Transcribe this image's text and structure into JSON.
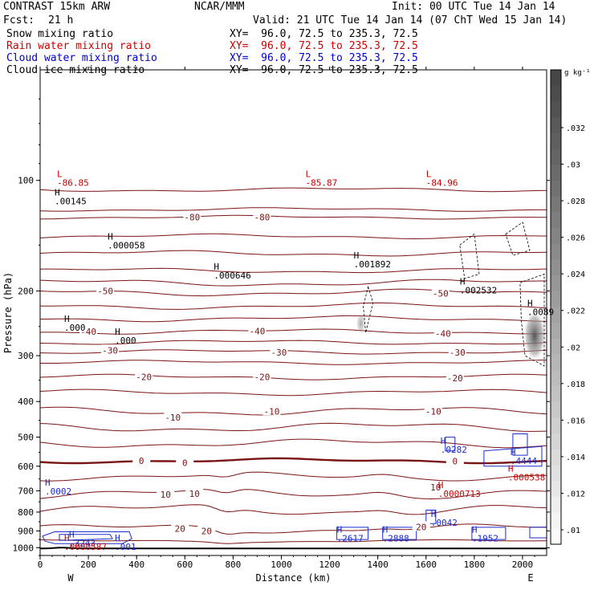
{
  "header": {
    "model": "CONTRAST 15km ARW",
    "org": "NCAR/MMM",
    "init": "Init: 00 UTC Tue 14 Jan 14",
    "fcst_label": "Fcst:",
    "fcst_value": "21 h",
    "valid": "Valid: 21 UTC Tue 14 Jan 14 (07 ChT Wed 15 Jan 14)",
    "rows": [
      {
        "field": "Snow mixing ratio",
        "xy": "XY=  96.0, 72.5 to 235.3, 72.5",
        "color": "#000000"
      },
      {
        "field": "Rain water mixing ratio",
        "xy": "XY=  96.0, 72.5 to 235.3, 72.5",
        "color": "#d00000"
      },
      {
        "field": "Cloud water mixing ratio",
        "xy": "XY=  96.0, 72.5 to 235.3, 72.5",
        "color": "#0000d0"
      },
      {
        "field": "Cloud ice mixing ratio",
        "xy": "XY=  96.0, 72.5 to 235.3, 72.5",
        "color": "#000000"
      }
    ]
  },
  "colors": {
    "temp_contour": "#7a1414",
    "surface": "#000000",
    "cloud_water": "#1a2bd0",
    "rain_water": "#cc0000",
    "label_black": "#000000"
  },
  "chart_data": {
    "type": "contour",
    "xlabel": "Distance (km)",
    "ylabel": "Pressure (hPa)",
    "xlim": [
      0,
      2100
    ],
    "ylim": [
      1050,
      50
    ],
    "y_scale": "log",
    "x_ticks": [
      0,
      200,
      400,
      600,
      800,
      1000,
      1200,
      1400,
      1600,
      1800,
      2000
    ],
    "y_ticks": [
      100,
      200,
      300,
      400,
      500,
      600,
      700,
      800,
      900,
      1000
    ],
    "direction_labels": {
      "left": "W",
      "right": "E"
    },
    "colorbar": {
      "unit": "g kg⁻¹",
      "ticks": [
        ".01",
        ".012",
        ".014",
        ".016",
        ".018",
        ".02",
        ".022",
        ".024",
        ".026",
        ".028",
        ".03",
        ".032"
      ]
    },
    "isotherm_labels": [
      {
        "text": "-80",
        "x": 630,
        "p": 126
      },
      {
        "text": "-80",
        "x": 920,
        "p": 126
      },
      {
        "text": "-50",
        "x": 270,
        "p": 200
      },
      {
        "text": "-50",
        "x": 1660,
        "p": 203
      },
      {
        "text": "-40",
        "x": 200,
        "p": 258
      },
      {
        "text": "-40",
        "x": 900,
        "p": 257
      },
      {
        "text": "-40",
        "x": 1670,
        "p": 261
      },
      {
        "text": "-30",
        "x": 290,
        "p": 290
      },
      {
        "text": "-30",
        "x": 990,
        "p": 294
      },
      {
        "text": "-30",
        "x": 1730,
        "p": 294
      },
      {
        "text": "-20",
        "x": 430,
        "p": 343
      },
      {
        "text": "-20",
        "x": 920,
        "p": 343
      },
      {
        "text": "-20",
        "x": 1720,
        "p": 345
      },
      {
        "text": "-10",
        "x": 550,
        "p": 442
      },
      {
        "text": "-10",
        "x": 960,
        "p": 425
      },
      {
        "text": "-10",
        "x": 1630,
        "p": 425
      },
      {
        "text": "0",
        "x": 420,
        "p": 580
      },
      {
        "text": "0",
        "x": 600,
        "p": 587
      },
      {
        "text": "0",
        "x": 1720,
        "p": 582
      },
      {
        "text": "10",
        "x": 520,
        "p": 717
      },
      {
        "text": "10",
        "x": 640,
        "p": 713
      },
      {
        "text": "10",
        "x": 1640,
        "p": 684
      },
      {
        "text": "20",
        "x": 580,
        "p": 888
      },
      {
        "text": "20",
        "x": 690,
        "p": 900
      },
      {
        "text": "20",
        "x": 1580,
        "p": 878
      }
    ],
    "extrema_labels": [
      {
        "mark": "L",
        "value": "-86.85",
        "x": 70,
        "p": 98,
        "color": "rain"
      },
      {
        "mark": "L",
        "value": "-85.87",
        "x": 1100,
        "p": 98,
        "color": "rain"
      },
      {
        "mark": "L",
        "value": "-84.96",
        "x": 1600,
        "p": 98,
        "color": "rain"
      },
      {
        "mark": "H",
        "value": ".00145",
        "x": 60,
        "p": 110,
        "color": "black"
      },
      {
        "mark": "H",
        "value": ".000058",
        "x": 280,
        "p": 145,
        "color": "black"
      },
      {
        "mark": "H",
        "value": ".000646",
        "x": 720,
        "p": 175,
        "color": "black"
      },
      {
        "mark": "H",
        "value": ".001892",
        "x": 1300,
        "p": 163,
        "color": "black"
      },
      {
        "mark": "H",
        "value": ".002532",
        "x": 1740,
        "p": 192,
        "color": "black"
      },
      {
        "mark": "H",
        "value": ".0089",
        "x": 2020,
        "p": 220,
        "color": "black"
      },
      {
        "mark": "H",
        "value": ".000",
        "x": 100,
        "p": 243,
        "color": "black"
      },
      {
        "mark": "H",
        "value": ".000",
        "x": 310,
        "p": 263,
        "color": "black"
      },
      {
        "mark": "H",
        "value": ".0282",
        "x": 1660,
        "p": 522,
        "color": "cloud"
      },
      {
        "mark": "H",
        "value": ".4444",
        "x": 1950,
        "p": 560,
        "color": "cloud"
      },
      {
        "mark": "H",
        "value": ".000538",
        "x": 1940,
        "p": 620,
        "color": "rain"
      },
      {
        "mark": "H",
        "value": ".0002",
        "x": 20,
        "p": 678,
        "color": "cloud"
      },
      {
        "mark": "H",
        "value": ".0000713",
        "x": 1650,
        "p": 688,
        "color": "rain"
      },
      {
        "mark": "H",
        "value": ".0042",
        "x": 1620,
        "p": 825,
        "color": "cloud"
      },
      {
        "mark": "H",
        "value": ".2617",
        "x": 1230,
        "p": 910,
        "color": "cloud"
      },
      {
        "mark": "H",
        "value": ".2888",
        "x": 1420,
        "p": 910,
        "color": "cloud"
      },
      {
        "mark": "H",
        "value": ".1952",
        "x": 1790,
        "p": 910,
        "color": "cloud"
      },
      {
        "mark": "H",
        "value": ".3243",
        "x": 120,
        "p": 938,
        "color": "cloud"
      },
      {
        "mark": "H",
        "value": ".001",
        "x": 310,
        "p": 960,
        "color": "cloud"
      },
      {
        "mark": "H",
        "value": ".0000587",
        "x": 100,
        "p": 958,
        "color": "rain"
      }
    ]
  }
}
